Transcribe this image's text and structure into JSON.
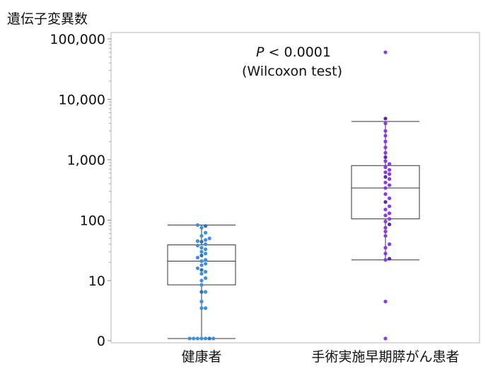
{
  "chart_data": {
    "type": "box-swarm",
    "title": "",
    "ylabel": "遺伝子変異数",
    "yscale": "log",
    "ylim_display": [
      "0",
      "100,000"
    ],
    "yticks": [
      {
        "label": "0",
        "value": 0
      },
      {
        "label": "10",
        "value": 10
      },
      {
        "label": "100",
        "value": 100
      },
      {
        "label": "1,000",
        "value": 1000
      },
      {
        "label": "10,000",
        "value": 10000
      },
      {
        "label": "100,000",
        "value": 100000
      }
    ],
    "categories": [
      "健康者",
      "手術実施早期膵がん患者"
    ],
    "annotation": {
      "p_italic": "P",
      "p_rest": " < 0.0001",
      "test": "(Wilcoxon test)"
    },
    "colors": {
      "healthy": "#3d8fe6",
      "healthy_dark": "#2f6fc0",
      "patient": "#8a38f0",
      "patient_dark": "#5a2aa8"
    },
    "boxes": [
      {
        "category": "健康者",
        "whisker_low": 1.1,
        "q1": 8.5,
        "median": 21,
        "q3": 39,
        "whisker_high": 83
      },
      {
        "category": "手術実施早期膵がん患者",
        "whisker_low": 22,
        "q1": 105,
        "median": 340,
        "q3": 800,
        "whisker_high": 4300
      }
    ],
    "points": [
      {
        "group": 0,
        "values": [
          1.1,
          1.1,
          1.1,
          1.1,
          1.1,
          1.1,
          1.1,
          3.5,
          3.5,
          4.5,
          6.5,
          6.5,
          8.5,
          10,
          11,
          13,
          14,
          15,
          16,
          18,
          19,
          21,
          22,
          24,
          26,
          28,
          30,
          33,
          35,
          38,
          40,
          44,
          45,
          47,
          50,
          55,
          62,
          75,
          80,
          83
        ]
      },
      {
        "group": 1,
        "values": [
          1.1,
          4.5,
          22,
          23,
          28,
          35,
          40,
          55,
          65,
          75,
          85,
          95,
          105,
          120,
          130,
          150,
          170,
          200,
          230,
          270,
          340,
          380,
          420,
          480,
          520,
          580,
          620,
          680,
          750,
          850,
          950,
          1100,
          1300,
          1600,
          2000,
          2500,
          3000,
          4000,
          4800,
          60000
        ]
      }
    ]
  }
}
